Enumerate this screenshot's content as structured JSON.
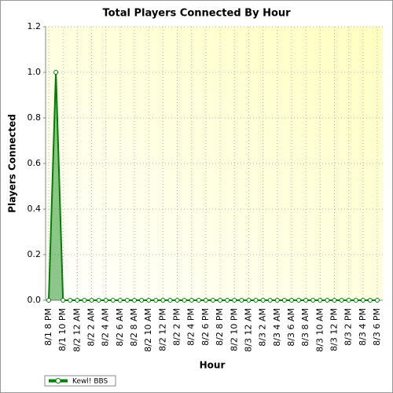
{
  "chart_data": {
    "type": "area",
    "title": "Total Players Connected By Hour",
    "x_label": "Hour",
    "y_label": "Players Connected",
    "categories": [
      "8/1 8 PM",
      null,
      "8/1 10 PM",
      null,
      "8/2 12 AM",
      null,
      "8/2 2 AM",
      null,
      "8/2 4 AM",
      null,
      "8/2 6 AM",
      null,
      "8/2 8 AM",
      null,
      "8/2 10 AM",
      null,
      "8/2 12 PM",
      null,
      "8/2 2 PM",
      null,
      "8/2 4 PM",
      null,
      "8/2 6 PM",
      null,
      "8/2 8 PM",
      null,
      "8/2 10 PM",
      null,
      "8/3 12 AM",
      null,
      "8/3 2 AM",
      null,
      "8/3 4 AM",
      null,
      "8/3 6 AM",
      null,
      "8/3 8 AM",
      null,
      "8/3 10 AM",
      null,
      "8/3 12 PM",
      null,
      "8/3 2 PM",
      null,
      "8/3 4 PM",
      null,
      "8/3 6 PM"
    ],
    "series": [
      {
        "name": "Kewl! BBS",
        "color": "#008000",
        "values": [
          0,
          1.0,
          0,
          0,
          0,
          0,
          0,
          0,
          0,
          0,
          0,
          0,
          0,
          0,
          0,
          0,
          0,
          0,
          0,
          0,
          0,
          0,
          0,
          0,
          0,
          0,
          0,
          0,
          0,
          0,
          0,
          0,
          0,
          0,
          0,
          0,
          0,
          0,
          0,
          0,
          0,
          0,
          0,
          0,
          0,
          0,
          0
        ]
      }
    ],
    "ylim": [
      0,
      1.2
    ],
    "yticks": [
      {
        "value": 0,
        "label": "0.0"
      },
      0.2,
      0.4,
      0.6,
      0.8,
      {
        "value": 1,
        "label": "1.0"
      },
      1.2
    ],
    "grid": true,
    "legend": "bottom-left"
  }
}
